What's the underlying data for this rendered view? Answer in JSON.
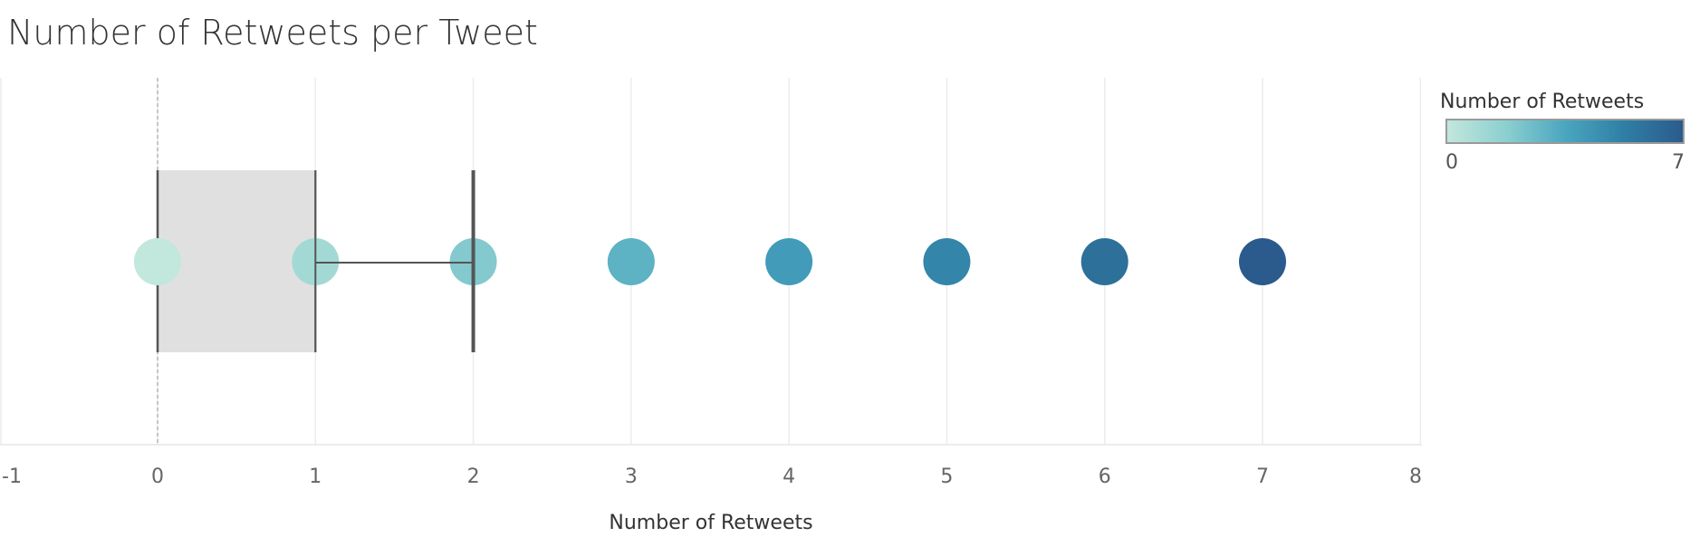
{
  "chart_data": {
    "type": "scatter",
    "title": "Number of Retweets per Tweet",
    "xlabel": "Number of Retweets",
    "xlim": [
      -1,
      8
    ],
    "x_ticks": [
      -1,
      0,
      1,
      2,
      3,
      4,
      5,
      6,
      7,
      8
    ],
    "points": [
      0,
      1,
      2,
      3,
      4,
      5,
      6,
      7
    ],
    "boxplot": {
      "lower_whisker": 0,
      "q1": 0,
      "median": 1,
      "q3": 1,
      "upper_whisker": 2
    },
    "reference_line": 0,
    "grid": "vertical",
    "legend": {
      "title": "Number of Retweets",
      "min_label": "0",
      "max_label": "7",
      "colors": [
        "#c2e7dc",
        "#8ccfd0",
        "#4aa6bf",
        "#2f7fa5",
        "#2b5b8c"
      ],
      "placement": "top-right"
    }
  }
}
